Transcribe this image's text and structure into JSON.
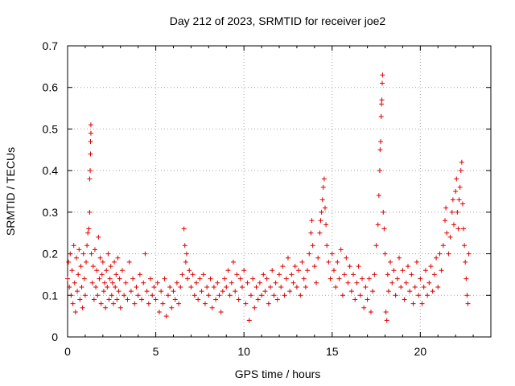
{
  "chart_data": {
    "type": "scatter",
    "title": "Day 212 of 2023, SRMTID for receiver joe2",
    "xlabel": "GPS time / hours",
    "ylabel": "SRMTID / TECUs",
    "xlim": [
      0,
      24
    ],
    "ylim": [
      0,
      0.7
    ],
    "x_ticks": [
      0,
      5,
      10,
      15,
      20
    ],
    "x_tick_labels": [
      "0",
      "5",
      "10",
      "15",
      "20"
    ],
    "y_ticks": [
      0,
      0.1,
      0.2,
      0.3,
      0.4,
      0.5,
      0.6,
      0.7
    ],
    "y_tick_labels": [
      "0",
      "0.1",
      "0.2",
      "0.3",
      "0.4",
      "0.5",
      "0.6",
      "0.7"
    ],
    "grid": true,
    "marker": "+",
    "color": "#e00000",
    "series": [
      {
        "name": "SRMTID",
        "points": [
          [
            0.0,
            0.14
          ],
          [
            0.05,
            0.18
          ],
          [
            0.1,
            0.12
          ],
          [
            0.15,
            0.2
          ],
          [
            0.2,
            0.1
          ],
          [
            0.25,
            0.16
          ],
          [
            0.3,
            0.08
          ],
          [
            0.35,
            0.22
          ],
          [
            0.4,
            0.13
          ],
          [
            0.45,
            0.06
          ],
          [
            0.5,
            0.19
          ],
          [
            0.55,
            0.11
          ],
          [
            0.6,
            0.15
          ],
          [
            0.65,
            0.21
          ],
          [
            0.7,
            0.09
          ],
          [
            0.75,
            0.17
          ],
          [
            0.8,
            0.12
          ],
          [
            0.85,
            0.07
          ],
          [
            0.9,
            0.2
          ],
          [
            0.95,
            0.14
          ],
          [
            1.0,
            0.1
          ],
          [
            1.05,
            0.18
          ],
          [
            1.1,
            0.22
          ],
          [
            1.15,
            0.25
          ],
          [
            1.2,
            0.26
          ],
          [
            1.25,
            0.3
          ],
          [
            1.25,
            0.38
          ],
          [
            1.28,
            0.4
          ],
          [
            1.3,
            0.44
          ],
          [
            1.3,
            0.47
          ],
          [
            1.32,
            0.49
          ],
          [
            1.32,
            0.51
          ],
          [
            1.35,
            0.2
          ],
          [
            1.4,
            0.13
          ],
          [
            1.45,
            0.17
          ],
          [
            1.5,
            0.09
          ],
          [
            1.55,
            0.21
          ],
          [
            1.6,
            0.12
          ],
          [
            1.65,
            0.16
          ],
          [
            1.7,
            0.1
          ],
          [
            1.75,
            0.24
          ],
          [
            1.8,
            0.14
          ],
          [
            1.85,
            0.19
          ],
          [
            1.9,
            0.08
          ],
          [
            1.95,
            0.15
          ],
          [
            2.0,
            0.18
          ],
          [
            2.05,
            0.11
          ],
          [
            2.1,
            0.13
          ],
          [
            2.15,
            0.07
          ],
          [
            2.2,
            0.16
          ],
          [
            2.25,
            0.12
          ],
          [
            2.3,
            0.2
          ],
          [
            2.35,
            0.09
          ],
          [
            2.4,
            0.14
          ],
          [
            2.45,
            0.17
          ],
          [
            2.5,
            0.1
          ],
          [
            2.55,
            0.13
          ],
          [
            2.6,
            0.08
          ],
          [
            2.65,
            0.18
          ],
          [
            2.7,
            0.12
          ],
          [
            2.75,
            0.15
          ],
          [
            2.8,
            0.09
          ],
          [
            2.85,
            0.19
          ],
          [
            2.9,
            0.11
          ],
          [
            2.95,
            0.14
          ],
          [
            3.0,
            0.07
          ],
          [
            3.1,
            0.16
          ],
          [
            3.2,
            0.1
          ],
          [
            3.3,
            0.13
          ],
          [
            3.4,
            0.09
          ],
          [
            3.5,
            0.18
          ],
          [
            3.6,
            0.11
          ],
          [
            3.7,
            0.14
          ],
          [
            3.8,
            0.08
          ],
          [
            3.9,
            0.12
          ],
          [
            4.0,
            0.1
          ],
          [
            4.1,
            0.15
          ],
          [
            4.2,
            0.09
          ],
          [
            4.3,
            0.13
          ],
          [
            4.4,
            0.2
          ],
          [
            4.5,
            0.11
          ],
          [
            4.6,
            0.08
          ],
          [
            4.7,
            0.14
          ],
          [
            4.8,
            0.1
          ],
          [
            4.9,
            0.12
          ],
          [
            5.0,
            0.09
          ],
          [
            5.1,
            0.13
          ],
          [
            5.2,
            0.06
          ],
          [
            5.3,
            0.11
          ],
          [
            5.4,
            0.08
          ],
          [
            5.5,
            0.14
          ],
          [
            5.6,
            0.05
          ],
          [
            5.7,
            0.1
          ],
          [
            5.8,
            0.12
          ],
          [
            5.9,
            0.07
          ],
          [
            6.0,
            0.11
          ],
          [
            6.1,
            0.09
          ],
          [
            6.2,
            0.13
          ],
          [
            6.3,
            0.08
          ],
          [
            6.4,
            0.12
          ],
          [
            6.5,
            0.15
          ],
          [
            6.6,
            0.26
          ],
          [
            6.65,
            0.22
          ],
          [
            6.7,
            0.18
          ],
          [
            6.75,
            0.2
          ],
          [
            6.8,
            0.14
          ],
          [
            6.9,
            0.16
          ],
          [
            7.0,
            0.12
          ],
          [
            7.1,
            0.15
          ],
          [
            7.2,
            0.1
          ],
          [
            7.3,
            0.13
          ],
          [
            7.4,
            0.09
          ],
          [
            7.5,
            0.14
          ],
          [
            7.6,
            0.11
          ],
          [
            7.7,
            0.15
          ],
          [
            7.8,
            0.08
          ],
          [
            7.9,
            0.12
          ],
          [
            8.0,
            0.1
          ],
          [
            8.1,
            0.14
          ],
          [
            8.2,
            0.07
          ],
          [
            8.3,
            0.12
          ],
          [
            8.4,
            0.09
          ],
          [
            8.5,
            0.13
          ],
          [
            8.6,
            0.1
          ],
          [
            8.7,
            0.06
          ],
          [
            8.8,
            0.11
          ],
          [
            8.9,
            0.14
          ],
          [
            9.0,
            0.12
          ],
          [
            9.1,
            0.16
          ],
          [
            9.2,
            0.1
          ],
          [
            9.3,
            0.13
          ],
          [
            9.4,
            0.18
          ],
          [
            9.5,
            0.11
          ],
          [
            9.6,
            0.15
          ],
          [
            9.7,
            0.09
          ],
          [
            9.8,
            0.14
          ],
          [
            9.9,
            0.12
          ],
          [
            10.0,
            0.16
          ],
          [
            10.1,
            0.08
          ],
          [
            10.2,
            0.13
          ],
          [
            10.3,
            0.04
          ],
          [
            10.4,
            0.1
          ],
          [
            10.5,
            0.14
          ],
          [
            10.6,
            0.07
          ],
          [
            10.7,
            0.12
          ],
          [
            10.8,
            0.09
          ],
          [
            10.9,
            0.13
          ],
          [
            11.0,
            0.1
          ],
          [
            11.1,
            0.15
          ],
          [
            11.2,
            0.11
          ],
          [
            11.3,
            0.14
          ],
          [
            11.4,
            0.08
          ],
          [
            11.5,
            0.12
          ],
          [
            11.6,
            0.16
          ],
          [
            11.7,
            0.1
          ],
          [
            11.8,
            0.13
          ],
          [
            11.9,
            0.09
          ],
          [
            12.0,
            0.15
          ],
          [
            12.1,
            0.12
          ],
          [
            12.2,
            0.17
          ],
          [
            12.3,
            0.1
          ],
          [
            12.4,
            0.14
          ],
          [
            12.5,
            0.19
          ],
          [
            12.6,
            0.11
          ],
          [
            12.7,
            0.15
          ],
          [
            12.8,
            0.13
          ],
          [
            12.9,
            0.17
          ],
          [
            13.0,
            0.12
          ],
          [
            13.1,
            0.16
          ],
          [
            13.2,
            0.1
          ],
          [
            13.3,
            0.18
          ],
          [
            13.4,
            0.14
          ],
          [
            13.5,
            0.12
          ],
          [
            13.6,
            0.16
          ],
          [
            13.7,
            0.2
          ],
          [
            13.8,
            0.25
          ],
          [
            13.85,
            0.28
          ],
          [
            13.9,
            0.22
          ],
          [
            14.0,
            0.17
          ],
          [
            14.1,
            0.13
          ],
          [
            14.2,
            0.19
          ],
          [
            14.3,
            0.25
          ],
          [
            14.35,
            0.28
          ],
          [
            14.4,
            0.3
          ],
          [
            14.45,
            0.33
          ],
          [
            14.5,
            0.36
          ],
          [
            14.55,
            0.38
          ],
          [
            14.6,
            0.31
          ],
          [
            14.65,
            0.27
          ],
          [
            14.7,
            0.22
          ],
          [
            14.8,
            0.18
          ],
          [
            14.9,
            0.14
          ],
          [
            15.0,
            0.2
          ],
          [
            15.1,
            0.16
          ],
          [
            15.2,
            0.12
          ],
          [
            15.3,
            0.18
          ],
          [
            15.4,
            0.14
          ],
          [
            15.5,
            0.21
          ],
          [
            15.6,
            0.1
          ],
          [
            15.7,
            0.15
          ],
          [
            15.8,
            0.19
          ],
          [
            15.9,
            0.13
          ],
          [
            16.0,
            0.17
          ],
          [
            16.1,
            0.11
          ],
          [
            16.2,
            0.15
          ],
          [
            16.3,
            0.09
          ],
          [
            16.4,
            0.13
          ],
          [
            16.5,
            0.17
          ],
          [
            16.6,
            0.1
          ],
          [
            16.7,
            0.14
          ],
          [
            16.8,
            0.07
          ],
          [
            16.9,
            0.12
          ],
          [
            17.0,
            0.09
          ],
          [
            17.1,
            0.14
          ],
          [
            17.2,
            0.06
          ],
          [
            17.3,
            0.11
          ],
          [
            17.4,
            0.15
          ],
          [
            17.5,
            0.22
          ],
          [
            17.6,
            0.27
          ],
          [
            17.65,
            0.34
          ],
          [
            17.7,
            0.4
          ],
          [
            17.72,
            0.45
          ],
          [
            17.75,
            0.47
          ],
          [
            17.78,
            0.53
          ],
          [
            17.8,
            0.56
          ],
          [
            17.82,
            0.57
          ],
          [
            17.84,
            0.61
          ],
          [
            17.86,
            0.63
          ],
          [
            17.9,
            0.3
          ],
          [
            17.95,
            0.26
          ],
          [
            18.0,
            0.2
          ],
          [
            18.05,
            0.06
          ],
          [
            18.1,
            0.04
          ],
          [
            18.15,
            0.15
          ],
          [
            18.2,
            0.11
          ],
          [
            18.3,
            0.18
          ],
          [
            18.4,
            0.13
          ],
          [
            18.5,
            0.16
          ],
          [
            18.6,
            0.1
          ],
          [
            18.7,
            0.14
          ],
          [
            18.8,
            0.19
          ],
          [
            18.9,
            0.12
          ],
          [
            19.0,
            0.16
          ],
          [
            19.1,
            0.09
          ],
          [
            19.2,
            0.13
          ],
          [
            19.3,
            0.17
          ],
          [
            19.4,
            0.11
          ],
          [
            19.5,
            0.15
          ],
          [
            19.6,
            0.08
          ],
          [
            19.7,
            0.12
          ],
          [
            19.8,
            0.18
          ],
          [
            19.9,
            0.1
          ],
          [
            20.0,
            0.14
          ],
          [
            20.1,
            0.08
          ],
          [
            20.2,
            0.12
          ],
          [
            20.3,
            0.16
          ],
          [
            20.4,
            0.1
          ],
          [
            20.5,
            0.13
          ],
          [
            20.6,
            0.17
          ],
          [
            20.7,
            0.11
          ],
          [
            20.8,
            0.15
          ],
          [
            20.9,
            0.19
          ],
          [
            21.0,
            0.12
          ],
          [
            21.1,
            0.2
          ],
          [
            21.2,
            0.16
          ],
          [
            21.3,
            0.22
          ],
          [
            21.4,
            0.28
          ],
          [
            21.45,
            0.31
          ],
          [
            21.5,
            0.25
          ],
          [
            21.6,
            0.2
          ],
          [
            21.7,
            0.24
          ],
          [
            21.8,
            0.3
          ],
          [
            21.85,
            0.33
          ],
          [
            21.9,
            0.27
          ],
          [
            22.0,
            0.35
          ],
          [
            22.05,
            0.38
          ],
          [
            22.1,
            0.3
          ],
          [
            22.15,
            0.26
          ],
          [
            22.2,
            0.33
          ],
          [
            22.25,
            0.36
          ],
          [
            22.3,
            0.4
          ],
          [
            22.35,
            0.42
          ],
          [
            22.4,
            0.32
          ],
          [
            22.45,
            0.26
          ],
          [
            22.5,
            0.22
          ],
          [
            22.55,
            0.18
          ],
          [
            22.6,
            0.14
          ],
          [
            22.65,
            0.1
          ],
          [
            22.7,
            0.08
          ],
          [
            22.75,
            0.2
          ]
        ]
      }
    ]
  }
}
